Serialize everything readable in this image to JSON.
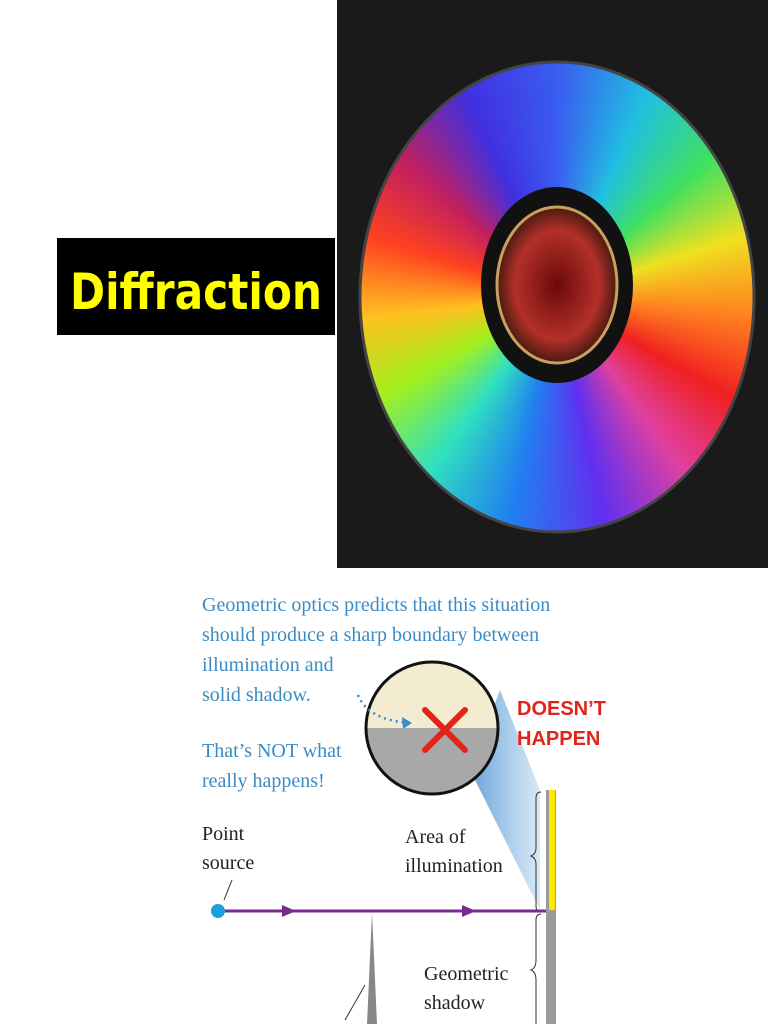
{
  "title": "Diffraction",
  "figure": {
    "caption_lines": [
      "Geometric optics predicts that this situation",
      "should produce a sharp boundary between",
      "illumination and",
      "solid shadow."
    ],
    "callout_lines": [
      "DOESN’T",
      "HAPPEN"
    ],
    "note_lines": [
      "That’s NOT what",
      "really happens!"
    ],
    "point_source_lines": [
      "Point",
      "source"
    ],
    "illumination_lines": [
      "Area of",
      "illumination"
    ],
    "shadow_lines": [
      "Geometric",
      "shadow"
    ]
  }
}
